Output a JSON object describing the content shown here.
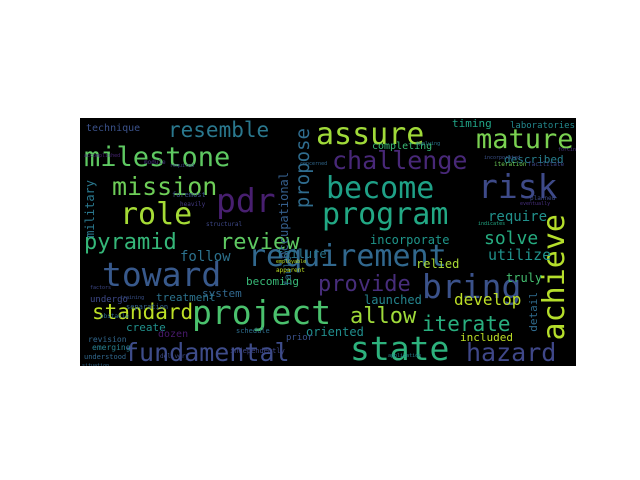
{
  "background": "#000000",
  "words": [
    {
      "text": "milestone",
      "color": "#5ec962"
    },
    {
      "text": "assure",
      "color": "#a0da39"
    },
    {
      "text": "mature",
      "color": "#7ad151"
    },
    {
      "text": "challenge",
      "color": "#482878"
    },
    {
      "text": "resemble",
      "color": "#2a788e"
    },
    {
      "text": "mission",
      "color": "#6ece58"
    },
    {
      "text": "pdr",
      "color": "#481f70"
    },
    {
      "text": "risk",
      "color": "#3e4a89"
    },
    {
      "text": "become",
      "color": "#1fa187"
    },
    {
      "text": "role",
      "color": "#a5db36"
    },
    {
      "text": "program",
      "color": "#22a884"
    },
    {
      "text": "pyramid",
      "color": "#35b779"
    },
    {
      "text": "review",
      "color": "#5ec962"
    },
    {
      "text": "requirement",
      "color": "#31688e"
    },
    {
      "text": "achieve",
      "color": "#b5de2b"
    },
    {
      "text": "toward",
      "color": "#38598c"
    },
    {
      "text": "bring",
      "color": "#3b528b"
    },
    {
      "text": "provide",
      "color": "#472d7b"
    },
    {
      "text": "standard",
      "color": "#bddf26"
    },
    {
      "text": "project",
      "color": "#4ac16d"
    },
    {
      "text": "allow",
      "color": "#9fda3a"
    },
    {
      "text": "iterate",
      "color": "#29af7f"
    },
    {
      "text": "fundamental",
      "color": "#3e4c8a"
    },
    {
      "text": "state",
      "color": "#2db27d"
    },
    {
      "text": "hazard",
      "color": "#3f4788"
    },
    {
      "text": "propose",
      "color": "#2f6c8e"
    },
    {
      "text": "solve",
      "color": "#26ad81"
    },
    {
      "text": "incorporate",
      "color": "#1f968b"
    },
    {
      "text": "utilize",
      "color": "#20928c"
    },
    {
      "text": "develop",
      "color": "#bddf26"
    },
    {
      "text": "require",
      "color": "#21918c"
    },
    {
      "text": "described",
      "color": "#277f8e"
    },
    {
      "text": "timing",
      "color": "#20a486"
    },
    {
      "text": "laboratories",
      "color": "#23898e"
    },
    {
      "text": "technique",
      "color": "#3b528b"
    },
    {
      "text": "follow",
      "color": "#2c728e"
    },
    {
      "text": "failure",
      "color": "#2a768e"
    },
    {
      "text": "system",
      "color": "#31688e"
    },
    {
      "text": "becoming",
      "color": "#38b977"
    },
    {
      "text": "treatment",
      "color": "#2c738e"
    },
    {
      "text": "create",
      "color": "#21918c"
    },
    {
      "text": "launched",
      "color": "#25858e"
    },
    {
      "text": "oriented",
      "color": "#218e8d"
    },
    {
      "text": "included",
      "color": "#bddf26"
    },
    {
      "text": "relied",
      "color": "#a8db34"
    },
    {
      "text": "completing",
      "color": "#3aba76"
    },
    {
      "text": "dozen",
      "color": "#481a6c"
    },
    {
      "text": "military",
      "color": "#2a788e"
    },
    {
      "text": "occupational",
      "color": "#355f8d"
    },
    {
      "text": "fault",
      "color": "#2e6f8e"
    },
    {
      "text": "detail",
      "color": "#2f6b8e"
    },
    {
      "text": "truly",
      "color": "#44bf70"
    },
    {
      "text": "prior",
      "color": "#3b518b"
    },
    {
      "text": "undergo",
      "color": "#3e4989"
    },
    {
      "text": "revision",
      "color": "#31688e"
    },
    {
      "text": "understood",
      "color": "#31688e"
    },
    {
      "text": "emerging",
      "color": "#277f8e"
    },
    {
      "text": "schedule",
      "color": "#2e6e8e"
    },
    {
      "text": "independently",
      "color": "#3f4788"
    },
    {
      "text": "structural",
      "color": "#3e4989"
    },
    {
      "text": "separation",
      "color": "#33638d"
    },
    {
      "text": "module",
      "color": "#46307e"
    },
    {
      "text": "heavily",
      "color": "#443a83"
    },
    {
      "text": "foremost",
      "color": "#3b528b"
    },
    {
      "text": "obstacle",
      "color": "#2e6e8e"
    },
    {
      "text": "delivery",
      "color": "#3e4c8a"
    },
    {
      "text": "application",
      "color": "#26828e"
    },
    {
      "text": "facilitate",
      "color": "#3e4989"
    },
    {
      "text": "iteration",
      "color": "#6ece58"
    },
    {
      "text": "planned",
      "color": "#3e4c8a"
    },
    {
      "text": "situation",
      "color": "#31688e"
    },
    {
      "text": "apparent",
      "color": "#bddf26"
    },
    {
      "text": "employable",
      "color": "#b8de29"
    },
    {
      "text": "eventually",
      "color": "#472f7d"
    },
    {
      "text": "applying",
      "color": "#2a788e"
    },
    {
      "text": "incorporated",
      "color": "#3b528b"
    },
    {
      "text": "required",
      "color": "#3f4788"
    },
    {
      "text": "accomplished",
      "color": "#482576"
    },
    {
      "text": "indicates",
      "color": "#22a884"
    },
    {
      "text": "factors",
      "color": "#3e4989"
    },
    {
      "text": "training",
      "color": "#3b528b"
    },
    {
      "text": "concerned",
      "color": "#31688e"
    },
    {
      "text": "forcing",
      "color": "#46337e"
    }
  ]
}
